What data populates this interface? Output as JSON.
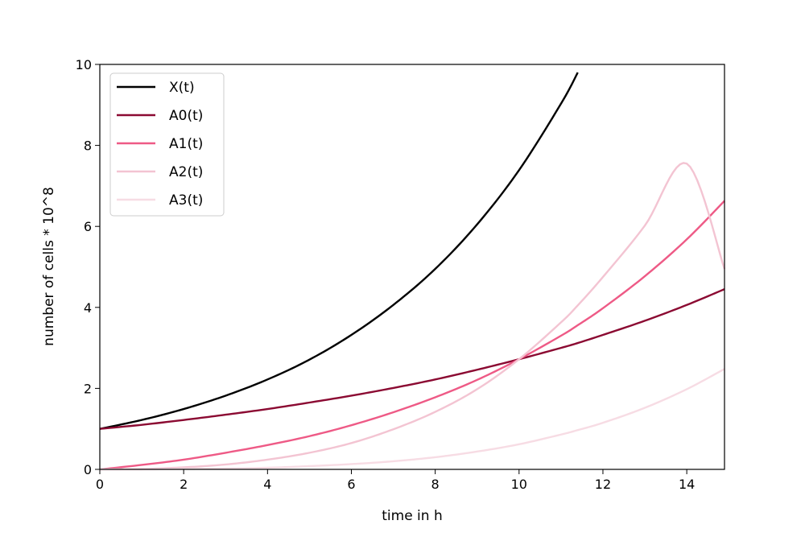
{
  "chart_data": {
    "type": "line",
    "title": "",
    "xlabel": "time in h",
    "ylabel": "number of cells * 10^8",
    "xlim": [
      0,
      14.9
    ],
    "ylim": [
      0,
      10
    ],
    "xticks": [
      0,
      2,
      4,
      6,
      8,
      10,
      12,
      14
    ],
    "yticks": [
      0,
      2,
      4,
      6,
      8,
      10
    ],
    "grid": false,
    "legend_position": "top-left",
    "x": [
      0,
      1,
      2,
      3,
      4,
      5,
      6,
      7,
      8,
      9,
      10,
      11,
      11.4,
      12,
      13,
      14,
      14.9
    ],
    "series": [
      {
        "name": "X(t)",
        "color": "#000000",
        "values": [
          1.0,
          1.22,
          1.49,
          1.82,
          2.22,
          2.71,
          3.32,
          4.06,
          4.95,
          6.05,
          7.39,
          9.03,
          9.8,
          null,
          null,
          null,
          null
        ]
      },
      {
        "name": "A0(t)",
        "color": "#8b0a32",
        "values": [
          1.0,
          1.1,
          1.22,
          1.35,
          1.49,
          1.65,
          1.82,
          2.01,
          2.22,
          2.46,
          2.72,
          3.0,
          3.12,
          3.32,
          3.67,
          4.06,
          4.45
        ]
      },
      {
        "name": "A1(t)",
        "color": "#ee5a86",
        "values": [
          0.0,
          0.11,
          0.24,
          0.41,
          0.6,
          0.82,
          1.09,
          1.41,
          1.78,
          2.21,
          2.72,
          3.3,
          3.56,
          3.98,
          4.77,
          5.68,
          6.63
        ]
      },
      {
        "name": "A2(t)",
        "color": "#f3c4d2",
        "values": [
          0.0,
          0.01,
          0.05,
          0.12,
          0.24,
          0.41,
          0.65,
          0.99,
          1.42,
          1.98,
          2.72,
          3.63,
          4.05,
          4.75,
          6.02,
          7.55,
          4.95
        ]
      },
      {
        "name": "A3(t)",
        "color": "#f7dce4",
        "values": [
          0.0,
          0.0,
          0.01,
          0.02,
          0.04,
          0.08,
          0.13,
          0.2,
          0.3,
          0.44,
          0.62,
          0.86,
          0.97,
          1.15,
          1.52,
          1.98,
          2.48
        ]
      }
    ]
  }
}
